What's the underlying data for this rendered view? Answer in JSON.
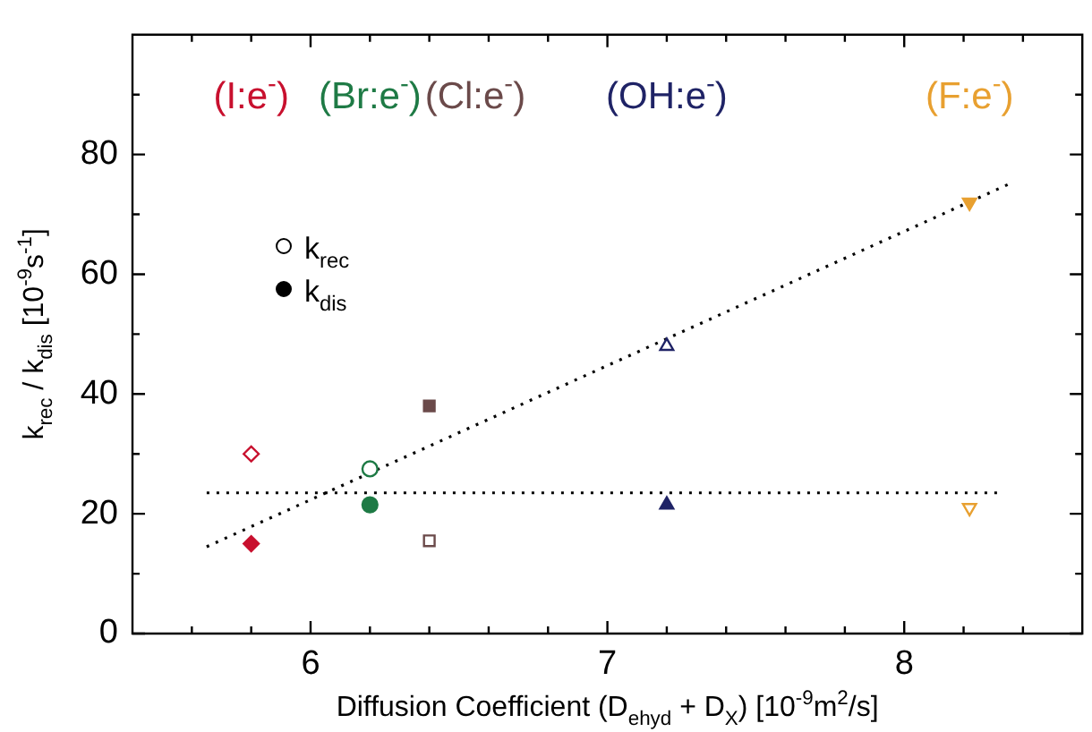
{
  "chart_data": {
    "type": "scatter",
    "xlabel": "Diffusion Coefficient (D$_{ehyd}$ + D$_{X}$) [10$^{-9}$m$^{2}$/s]",
    "ylabel": "k$_{rec}$ / k$_{dis}$ [10$^{-9}$s$^{-1}$]",
    "xlim": [
      5.4,
      8.6
    ],
    "xticks": [
      {
        "value": 5.6,
        "label": null
      },
      {
        "value": 5.8,
        "label": null
      },
      6,
      {
        "value": 6.2,
        "label": null
      },
      {
        "value": 6.4,
        "label": null
      },
      {
        "value": 6.6,
        "label": null
      },
      {
        "value": 6.8,
        "label": null
      },
      7,
      {
        "value": 7.2,
        "label": null
      },
      {
        "value": 7.4,
        "label": null
      },
      {
        "value": 7.6,
        "label": null
      },
      {
        "value": 7.8,
        "label": null
      },
      8,
      {
        "value": 8.2,
        "label": null
      },
      {
        "value": 8.4,
        "label": null
      }
    ],
    "ylim": [
      0,
      100
    ],
    "yticks": [
      0,
      {
        "value": 10,
        "label": null
      },
      20,
      {
        "value": 30,
        "label": null
      },
      40,
      {
        "value": 50,
        "label": null
      },
      60,
      {
        "value": 70,
        "label": null
      },
      80,
      {
        "value": 90,
        "label": null
      }
    ],
    "legend": "top",
    "series": [
      {
        "name": "(I:e$^{-}$)",
        "color": "#c8102e",
        "marker": "diamond",
        "x": [
          5.8,
          5.8
        ],
        "values": [
          30,
          15
        ]
      },
      {
        "name": "(Br:e$^{-}$)",
        "color": "#1e7a45",
        "marker": "circle",
        "x": [
          6.2,
          6.2
        ],
        "values": [
          27.5,
          21.5
        ]
      },
      {
        "name": "(Cl:e$^{-}$)",
        "color": "#6b4a4a",
        "marker": "square",
        "x": [
          6.4,
          6.4
        ],
        "values": [
          15.5,
          38
        ]
      },
      {
        "name": "(OH:e$^{-}$)",
        "color": "#1f2366",
        "marker": "triangle",
        "x": [
          7.2,
          7.2
        ],
        "values": [
          48,
          21.5
        ]
      },
      {
        "name": "(F:e$^{-}$)",
        "color": "#e8a030",
        "marker": "triangle-down",
        "x": [
          8.22,
          8.22
        ],
        "values": [
          21,
          72
        ]
      },
      {
        "type": "line",
        "color": "#000000",
        "line_style": "dotted",
        "marker": "none",
        "x": [
          5.65,
          8.35
        ],
        "values": [
          14.5,
          75
        ]
      },
      {
        "type": "line",
        "color": "#000000",
        "line_style": "dotted",
        "marker": "none",
        "x": [
          5.65,
          8.33
        ],
        "values": [
          23.5,
          23.5
        ]
      }
    ],
    "annotations": [
      "k$_{rec}$",
      "k$_{dis}$"
    ]
  }
}
